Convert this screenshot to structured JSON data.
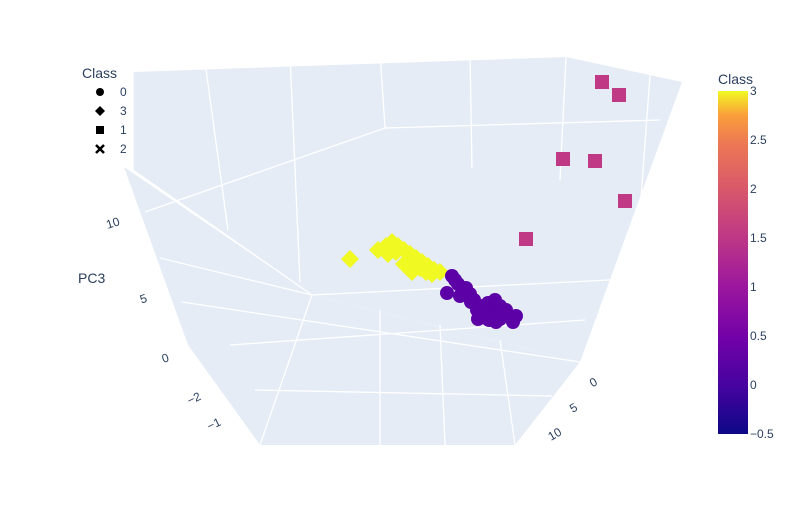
{
  "chart_data": {
    "type": "scatter3d",
    "axes": {
      "x": {
        "ticks": [
          "−2",
          "−1"
        ]
      },
      "y": {
        "ticks": [
          "0",
          "5",
          "10"
        ]
      },
      "z": {
        "title": "PC3",
        "ticks": [
          "0",
          "5",
          "10"
        ]
      }
    },
    "legend": {
      "title": "Class",
      "placement": "top-left",
      "items": [
        {
          "label": "0",
          "symbol": "circle"
        },
        {
          "label": "3",
          "symbol": "diamond"
        },
        {
          "label": "1",
          "symbol": "square"
        },
        {
          "label": "2",
          "symbol": "x"
        }
      ]
    },
    "colorbar": {
      "title": "Class",
      "ticks": [
        "3",
        "2.5",
        "2",
        "1.5",
        "1",
        "0.5",
        "0",
        "−0.5"
      ],
      "range": [
        -0.5,
        3
      ]
    },
    "series": [
      {
        "name": "0",
        "symbol": "circle",
        "class_value": 0,
        "approx_count": 30
      },
      {
        "name": "3",
        "symbol": "diamond",
        "class_value": 3,
        "approx_count": 20
      },
      {
        "name": "1",
        "symbol": "square",
        "class_value": 1,
        "approx_count": 6
      }
    ],
    "colors": {
      "class0": "#5c01a6",
      "class1": "#bf3984",
      "class3": "#f0f921"
    }
  }
}
